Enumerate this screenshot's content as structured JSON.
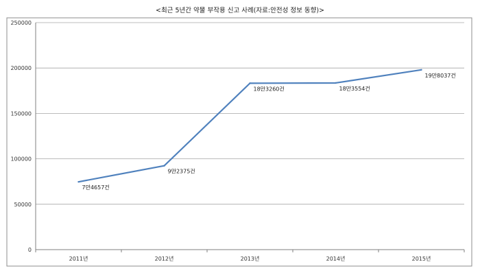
{
  "chart_data": {
    "type": "line",
    "title": "<최근 5년간 약물 부작용 신고 사례(자료:안전성 정보 동향)>",
    "xlabel": "",
    "ylabel": "",
    "categories": [
      "2011년",
      "2012년",
      "2013년",
      "2014년",
      "2015년"
    ],
    "series": [
      {
        "values": [
          74657,
          92375,
          183260,
          183554,
          198037
        ],
        "labels": [
          "7만4657건",
          "9만2375건",
          "18만3260건",
          "18만3554건",
          "19만8037건"
        ],
        "color": "#4f81bd"
      }
    ],
    "ylim": [
      0,
      250000
    ],
    "yticks": [
      0,
      50000,
      100000,
      150000,
      200000,
      250000
    ],
    "ytick_labels": [
      "0",
      "50000",
      "100000",
      "150000",
      "200000",
      "250000"
    ],
    "grid": true,
    "legend": "none"
  }
}
